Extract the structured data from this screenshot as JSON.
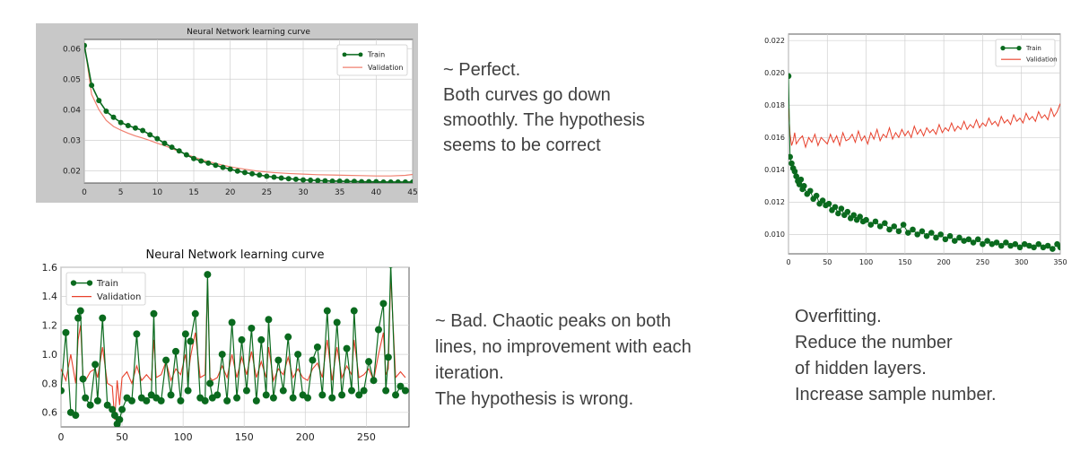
{
  "captions": {
    "perfect": [
      "~ Perfect.",
      "Both curves go down",
      "smoothly. The hypothesis",
      "seems to be correct"
    ],
    "bad": [
      "~ Bad. Chaotic peaks on both",
      "lines, no improvement with each",
      "iteration.",
      "The hypothesis is wrong."
    ],
    "overfit": [
      "Overfitting.",
      "Reduce the number",
      "of hidden layers.",
      "Increase sample number."
    ]
  },
  "colors": {
    "train": "#0a6a1e",
    "validation": "#e8412c",
    "validation_light": "#f08070"
  },
  "chart_data": [
    {
      "id": "perfect",
      "type": "line",
      "title": "Neural Network learning curve",
      "xlim": [
        0,
        45
      ],
      "ylim": [
        0.016,
        0.063
      ],
      "xticks": [
        0,
        5,
        10,
        15,
        20,
        25,
        30,
        35,
        40,
        45
      ],
      "yticks": [
        0.02,
        0.03,
        0.04,
        0.05,
        0.06
      ],
      "ytick_labels": [
        "0.02",
        "0.03",
        "0.04",
        "0.05",
        "0.06"
      ],
      "grid": true,
      "legend": "top-right",
      "series": [
        {
          "name": "Train",
          "marker": "circle",
          "x": [
            0,
            1,
            2,
            3,
            4,
            5,
            6,
            7,
            8,
            9,
            10,
            11,
            12,
            13,
            14,
            15,
            16,
            17,
            18,
            19,
            20,
            21,
            22,
            23,
            24,
            25,
            26,
            27,
            28,
            29,
            30,
            31,
            32,
            33,
            34,
            35,
            36,
            37,
            38,
            39,
            40,
            41,
            42,
            43,
            44,
            45
          ],
          "y": [
            0.061,
            0.048,
            0.043,
            0.0395,
            0.0375,
            0.0358,
            0.0348,
            0.034,
            0.0332,
            0.0318,
            0.0305,
            0.029,
            0.0277,
            0.0265,
            0.0252,
            0.024,
            0.0232,
            0.0225,
            0.0218,
            0.0211,
            0.0205,
            0.0199,
            0.0194,
            0.019,
            0.0186,
            0.0182,
            0.0179,
            0.0176,
            0.0174,
            0.0172,
            0.017,
            0.0169,
            0.0168,
            0.0167,
            0.0166,
            0.0166,
            0.0165,
            0.0165,
            0.0164,
            0.0164,
            0.0164,
            0.0163,
            0.0163,
            0.0163,
            0.0163,
            0.0163
          ]
        },
        {
          "name": "Validation",
          "x": [
            0,
            1,
            2,
            3,
            4,
            5,
            6,
            7,
            8,
            9,
            10,
            11,
            12,
            13,
            14,
            15,
            16,
            17,
            18,
            19,
            20,
            22,
            24,
            26,
            28,
            30,
            32,
            34,
            36,
            38,
            40,
            42,
            44,
            45
          ],
          "y": [
            0.062,
            0.045,
            0.04,
            0.0365,
            0.0345,
            0.0333,
            0.0323,
            0.0314,
            0.0307,
            0.0299,
            0.029,
            0.0282,
            0.0273,
            0.0263,
            0.0254,
            0.0245,
            0.0237,
            0.023,
            0.0224,
            0.0218,
            0.0213,
            0.0205,
            0.0198,
            0.0194,
            0.0191,
            0.0189,
            0.0187,
            0.0186,
            0.0185,
            0.0184,
            0.0183,
            0.0183,
            0.0185,
            0.0188
          ]
        }
      ]
    },
    {
      "id": "bad",
      "type": "line",
      "title": "Neural Network learning curve",
      "xlim": [
        0,
        285
      ],
      "ylim": [
        0.5,
        1.6
      ],
      "xticks": [
        0,
        50,
        100,
        150,
        200,
        250
      ],
      "yticks": [
        0.6,
        0.8,
        1.0,
        1.2,
        1.4,
        1.6
      ],
      "ytick_labels": [
        "0.6",
        "0.8",
        "1.0",
        "1.2",
        "1.4",
        "1.6"
      ],
      "grid": true,
      "legend": "top-left",
      "series": [
        {
          "name": "Train",
          "marker": "circle",
          "x": [
            0,
            4,
            8,
            12,
            14,
            16,
            18,
            20,
            24,
            28,
            30,
            34,
            38,
            42,
            44,
            46,
            48,
            50,
            54,
            58,
            62,
            66,
            70,
            74,
            76,
            78,
            82,
            86,
            90,
            94,
            98,
            102,
            104,
            106,
            110,
            114,
            118,
            120,
            122,
            124,
            128,
            132,
            136,
            140,
            144,
            148,
            152,
            156,
            160,
            164,
            168,
            170,
            174,
            178,
            182,
            186,
            190,
            194,
            198,
            202,
            206,
            210,
            214,
            218,
            222,
            226,
            230,
            234,
            238,
            240,
            244,
            248,
            252,
            256,
            260,
            264,
            266,
            268,
            270,
            274,
            278,
            282
          ],
          "y": [
            0.75,
            1.15,
            0.6,
            0.58,
            1.25,
            1.3,
            0.83,
            0.7,
            0.65,
            0.93,
            0.68,
            1.25,
            0.65,
            0.62,
            0.58,
            0.52,
            0.55,
            0.62,
            0.7,
            0.68,
            1.14,
            0.7,
            0.68,
            0.72,
            1.28,
            0.7,
            0.68,
            0.96,
            0.72,
            1.02,
            0.68,
            1.14,
            0.75,
            1.09,
            1.28,
            0.7,
            0.68,
            1.55,
            0.8,
            0.7,
            0.72,
            1.0,
            0.68,
            1.22,
            0.7,
            1.1,
            0.75,
            1.18,
            0.68,
            1.1,
            0.72,
            1.24,
            0.7,
            0.96,
            0.75,
            1.12,
            0.7,
            1.0,
            0.72,
            0.7,
            0.96,
            1.05,
            0.72,
            1.3,
            0.7,
            1.22,
            0.72,
            1.04,
            0.75,
            1.3,
            0.72,
            0.75,
            0.95,
            0.82,
            1.17,
            1.35,
            0.75,
            0.98,
            1.62,
            0.72,
            0.78,
            0.75
          ]
        },
        {
          "name": "Validation",
          "x": [
            0,
            4,
            8,
            12,
            14,
            16,
            18,
            20,
            24,
            28,
            30,
            34,
            38,
            42,
            44,
            46,
            48,
            50,
            54,
            58,
            62,
            66,
            70,
            74,
            76,
            78,
            82,
            86,
            90,
            94,
            98,
            102,
            104,
            106,
            110,
            114,
            118,
            120,
            122,
            124,
            128,
            132,
            136,
            140,
            144,
            148,
            152,
            156,
            160,
            164,
            168,
            170,
            174,
            178,
            182,
            186,
            190,
            194,
            198,
            202,
            206,
            210,
            214,
            218,
            222,
            226,
            230,
            234,
            238,
            240,
            244,
            248,
            252,
            256,
            260,
            264,
            266,
            268,
            270,
            274,
            278,
            282
          ],
          "y": [
            0.9,
            0.82,
            1.0,
            0.8,
            1.1,
            1.2,
            0.85,
            0.82,
            0.88,
            0.9,
            0.84,
            1.05,
            0.8,
            0.78,
            0.55,
            0.82,
            0.65,
            0.84,
            0.88,
            0.8,
            0.92,
            0.82,
            0.86,
            0.82,
            1.1,
            0.84,
            0.86,
            0.95,
            0.82,
            0.9,
            0.86,
            1.0,
            0.84,
            0.98,
            1.15,
            0.84,
            0.86,
            1.5,
            0.84,
            0.82,
            0.84,
            0.92,
            0.84,
            1.0,
            0.84,
            0.98,
            0.86,
            1.02,
            0.84,
            0.95,
            0.84,
            1.05,
            0.82,
            0.9,
            0.86,
            0.98,
            0.84,
            0.9,
            0.84,
            0.82,
            0.9,
            0.94,
            0.84,
            1.1,
            0.82,
            1.05,
            0.84,
            0.92,
            0.86,
            1.1,
            0.84,
            0.86,
            0.9,
            0.82,
            1.0,
            1.15,
            0.86,
            0.9,
            1.55,
            0.84,
            0.88,
            0.84
          ]
        }
      ]
    },
    {
      "id": "overfit",
      "type": "line",
      "title": "",
      "xlim": [
        0,
        350
      ],
      "ylim": [
        0.0088,
        0.0224
      ],
      "xticks": [
        0,
        50,
        100,
        150,
        200,
        250,
        300,
        350
      ],
      "yticks": [
        0.01,
        0.012,
        0.014,
        0.016,
        0.018,
        0.02,
        0.022
      ],
      "ytick_labels": [
        "0.010",
        "0.012",
        "0.014",
        "0.016",
        "0.018",
        "0.020",
        "0.022"
      ],
      "grid": true,
      "legend": "top-right",
      "series": [
        {
          "name": "Train",
          "marker": "circle",
          "x": [
            0,
            2,
            4,
            6,
            8,
            10,
            12,
            14,
            16,
            18,
            20,
            24,
            28,
            32,
            36,
            40,
            44,
            48,
            52,
            56,
            60,
            64,
            68,
            72,
            76,
            80,
            84,
            88,
            92,
            96,
            100,
            106,
            112,
            118,
            124,
            130,
            136,
            142,
            148,
            154,
            160,
            166,
            172,
            178,
            184,
            190,
            196,
            202,
            208,
            214,
            220,
            226,
            232,
            238,
            244,
            250,
            256,
            262,
            268,
            274,
            280,
            286,
            292,
            298,
            304,
            310,
            316,
            322,
            328,
            334,
            340,
            346,
            350
          ],
          "y": [
            0.0198,
            0.0148,
            0.0144,
            0.0141,
            0.0139,
            0.0136,
            0.0133,
            0.0131,
            0.0134,
            0.0128,
            0.013,
            0.0125,
            0.0127,
            0.0122,
            0.0124,
            0.0119,
            0.0121,
            0.0118,
            0.0119,
            0.0115,
            0.0117,
            0.0113,
            0.0116,
            0.0112,
            0.0114,
            0.011,
            0.0112,
            0.0109,
            0.0111,
            0.0108,
            0.0109,
            0.0106,
            0.0108,
            0.0105,
            0.0107,
            0.0103,
            0.0105,
            0.0102,
            0.0106,
            0.0101,
            0.0103,
            0.01,
            0.0102,
            0.0099,
            0.0101,
            0.0098,
            0.01,
            0.0097,
            0.0099,
            0.0096,
            0.0098,
            0.0096,
            0.0097,
            0.0095,
            0.0097,
            0.0094,
            0.0096,
            0.0094,
            0.0095,
            0.0093,
            0.0095,
            0.0093,
            0.0094,
            0.0092,
            0.0094,
            0.0093,
            0.0092,
            0.0094,
            0.0092,
            0.0093,
            0.0091,
            0.0094,
            0.0092
          ]
        },
        {
          "name": "Validation",
          "x": [
            0,
            2,
            4,
            6,
            8,
            10,
            14,
            18,
            22,
            26,
            30,
            34,
            38,
            42,
            46,
            50,
            54,
            58,
            62,
            66,
            70,
            74,
            78,
            82,
            86,
            90,
            94,
            98,
            102,
            106,
            110,
            114,
            118,
            122,
            126,
            130,
            134,
            138,
            142,
            146,
            150,
            154,
            158,
            162,
            166,
            170,
            174,
            178,
            182,
            186,
            190,
            194,
            198,
            202,
            206,
            210,
            214,
            218,
            222,
            226,
            230,
            234,
            238,
            242,
            246,
            250,
            254,
            258,
            262,
            266,
            270,
            274,
            278,
            282,
            286,
            290,
            294,
            298,
            302,
            306,
            310,
            314,
            318,
            322,
            326,
            330,
            334,
            338,
            342,
            346,
            350
          ],
          "y": [
            0.0178,
            0.0162,
            0.0155,
            0.0158,
            0.0163,
            0.0156,
            0.0159,
            0.0161,
            0.0154,
            0.016,
            0.0157,
            0.0162,
            0.0155,
            0.016,
            0.0158,
            0.0156,
            0.0162,
            0.0157,
            0.0161,
            0.0155,
            0.0163,
            0.0158,
            0.0159,
            0.0162,
            0.0157,
            0.0164,
            0.0158,
            0.0161,
            0.0156,
            0.0163,
            0.0159,
            0.0165,
            0.0158,
            0.0162,
            0.016,
            0.0166,
            0.0159,
            0.0163,
            0.016,
            0.0165,
            0.0161,
            0.0164,
            0.016,
            0.0167,
            0.0162,
            0.0165,
            0.0161,
            0.0166,
            0.0163,
            0.0165,
            0.0162,
            0.0168,
            0.0163,
            0.0166,
            0.0164,
            0.0169,
            0.0164,
            0.0167,
            0.0165,
            0.017,
            0.0165,
            0.0168,
            0.0166,
            0.0171,
            0.0166,
            0.0169,
            0.0167,
            0.0172,
            0.0168,
            0.017,
            0.0167,
            0.0173,
            0.0169,
            0.0171,
            0.0168,
            0.0174,
            0.017,
            0.0172,
            0.0169,
            0.0175,
            0.0171,
            0.0173,
            0.017,
            0.0176,
            0.0172,
            0.0174,
            0.0171,
            0.0178,
            0.0173,
            0.0176,
            0.0181
          ]
        }
      ]
    }
  ]
}
